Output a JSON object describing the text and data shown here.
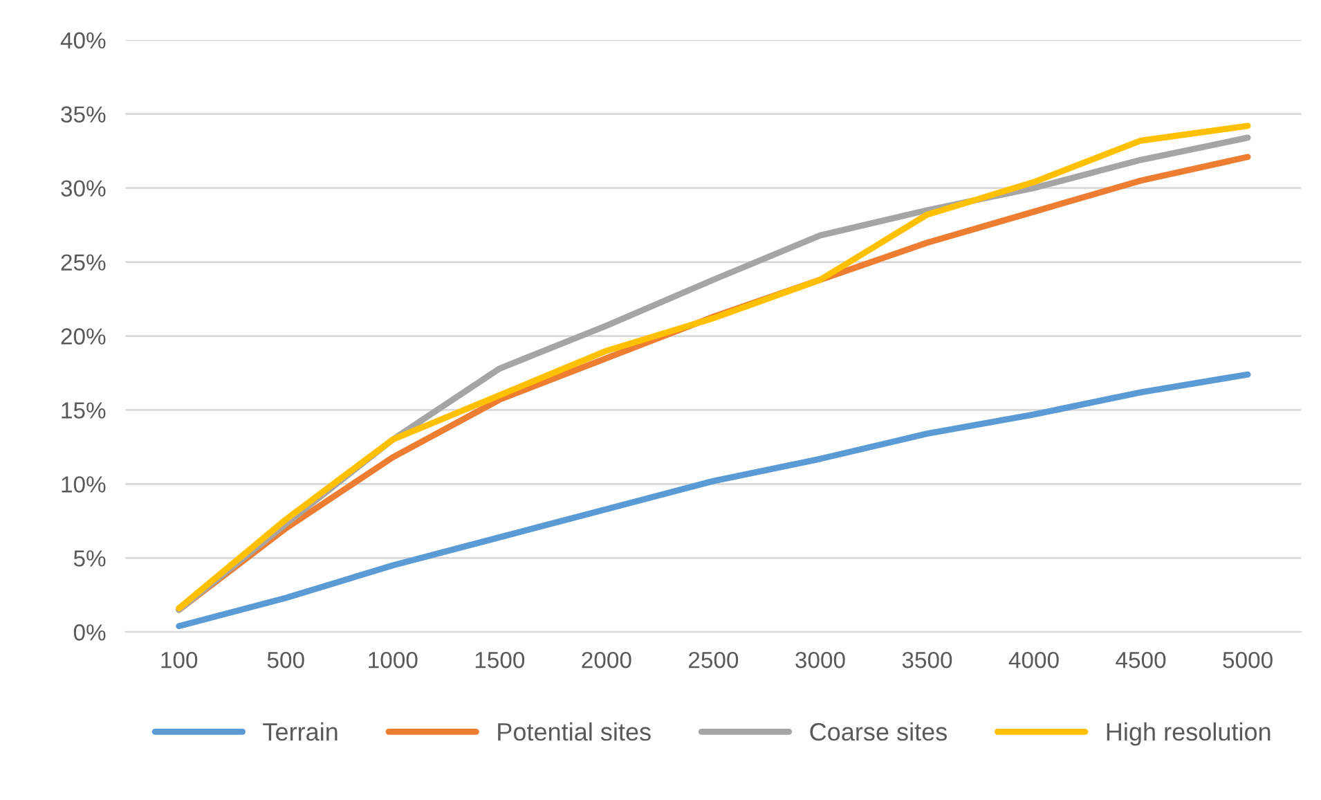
{
  "chart_data": {
    "type": "line",
    "categories": [
      "100",
      "500",
      "1000",
      "1500",
      "2000",
      "2500",
      "3000",
      "3500",
      "4000",
      "4500",
      "5000"
    ],
    "series": [
      {
        "name": "Terrain",
        "color": "#5b9bd5",
        "values": [
          0.4,
          2.3,
          4.5,
          6.4,
          8.3,
          10.2,
          11.7,
          13.4,
          14.7,
          16.2,
          17.4
        ]
      },
      {
        "name": "Potential sites",
        "color": "#ed7d31",
        "values": [
          1.5,
          7.0,
          11.8,
          15.7,
          18.5,
          21.3,
          23.8,
          26.3,
          28.4,
          30.5,
          32.1
        ]
      },
      {
        "name": "Coarse sites",
        "color": "#a5a5a5",
        "values": [
          1.5,
          7.3,
          13.0,
          17.8,
          20.7,
          23.8,
          26.8,
          28.5,
          30.0,
          31.9,
          33.4
        ]
      },
      {
        "name": "High resolution",
        "color": "#ffc000",
        "values": [
          1.6,
          7.6,
          13.0,
          16.0,
          19.0,
          21.2,
          23.8,
          28.2,
          30.4,
          33.2,
          34.2
        ]
      }
    ],
    "ylim": [
      0,
      40
    ],
    "yticks": [
      {
        "value": 0,
        "label": "0%"
      },
      {
        "value": 5,
        "label": "5%"
      },
      {
        "value": 10,
        "label": "10%"
      },
      {
        "value": 15,
        "label": "15%"
      },
      {
        "value": 20,
        "label": "20%"
      },
      {
        "value": 25,
        "label": "25%"
      },
      {
        "value": 30,
        "label": "30%"
      },
      {
        "value": 35,
        "label": "35%"
      },
      {
        "value": 40,
        "label": "40%"
      }
    ],
    "grid": "y",
    "legend": "bottom",
    "marker": "none",
    "line_style": "solid"
  }
}
